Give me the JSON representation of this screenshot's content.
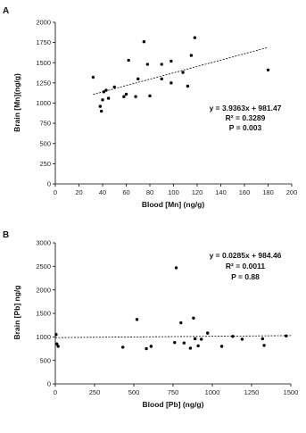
{
  "chart_data": [
    {
      "type": "scatter",
      "panel": "A",
      "xlabel": "Blood [Mn] (ng/g)",
      "ylabel": "Brain [Mn](ng/g)",
      "xlim": [
        0,
        200
      ],
      "ylim": [
        0,
        2000
      ],
      "xticks": [
        "0",
        "20",
        "40",
        "60",
        "80",
        "100",
        "120",
        "140",
        "160",
        "180",
        "200"
      ],
      "yticks": [
        "0",
        "250",
        "500",
        "750",
        "1000",
        "1250",
        "1500",
        "1750",
        "2000"
      ],
      "grid": false,
      "legend": "none",
      "points": [
        {
          "x": 32,
          "y": 1320
        },
        {
          "x": 38,
          "y": 960
        },
        {
          "x": 39,
          "y": 900
        },
        {
          "x": 40,
          "y": 1040
        },
        {
          "x": 41,
          "y": 1140
        },
        {
          "x": 43,
          "y": 1160
        },
        {
          "x": 45,
          "y": 1060
        },
        {
          "x": 50,
          "y": 1200
        },
        {
          "x": 58,
          "y": 1080
        },
        {
          "x": 60,
          "y": 1110
        },
        {
          "x": 62,
          "y": 1530
        },
        {
          "x": 68,
          "y": 1080
        },
        {
          "x": 70,
          "y": 1300
        },
        {
          "x": 75,
          "y": 1760
        },
        {
          "x": 78,
          "y": 1480
        },
        {
          "x": 80,
          "y": 1090
        },
        {
          "x": 90,
          "y": 1480
        },
        {
          "x": 90,
          "y": 1300
        },
        {
          "x": 98,
          "y": 1250
        },
        {
          "x": 98,
          "y": 1520
        },
        {
          "x": 108,
          "y": 1380
        },
        {
          "x": 112,
          "y": 1210
        },
        {
          "x": 115,
          "y": 1590
        },
        {
          "x": 118,
          "y": 1810
        },
        {
          "x": 180,
          "y": 1410
        }
      ],
      "trendline": {
        "slope": 3.9363,
        "intercept": 981.47,
        "x_range": [
          32,
          180
        ]
      },
      "annotations": [
        "y = 3.9363x + 981.47",
        "R² = 0.3289",
        "P = 0.003"
      ]
    },
    {
      "type": "scatter",
      "panel": "B",
      "xlabel": "Blood [Pb] (ng/g)",
      "ylabel": "Brain [Pb] ng/g",
      "xlim": [
        0,
        1500
      ],
      "ylim": [
        0,
        3000
      ],
      "xticks": [
        "0",
        "250",
        "500",
        "750",
        "1000",
        "1250",
        "1500"
      ],
      "yticks": [
        "0",
        "500",
        "1000",
        "1500",
        "2000",
        "2500",
        "3000"
      ],
      "grid": false,
      "legend": "none",
      "points": [
        {
          "x": 5,
          "y": 1050
        },
        {
          "x": 10,
          "y": 850
        },
        {
          "x": 18,
          "y": 800
        },
        {
          "x": 430,
          "y": 780
        },
        {
          "x": 520,
          "y": 1370
        },
        {
          "x": 580,
          "y": 750
        },
        {
          "x": 610,
          "y": 800
        },
        {
          "x": 760,
          "y": 880
        },
        {
          "x": 770,
          "y": 2470
        },
        {
          "x": 800,
          "y": 1300
        },
        {
          "x": 820,
          "y": 870
        },
        {
          "x": 860,
          "y": 760
        },
        {
          "x": 880,
          "y": 1400
        },
        {
          "x": 890,
          "y": 960
        },
        {
          "x": 910,
          "y": 810
        },
        {
          "x": 930,
          "y": 950
        },
        {
          "x": 970,
          "y": 1080
        },
        {
          "x": 1060,
          "y": 800
        },
        {
          "x": 1130,
          "y": 1010
        },
        {
          "x": 1190,
          "y": 950
        },
        {
          "x": 1320,
          "y": 960
        },
        {
          "x": 1330,
          "y": 820
        },
        {
          "x": 1470,
          "y": 1020
        }
      ],
      "trendline": {
        "slope": 0.0285,
        "intercept": 984.46,
        "x_range": [
          0,
          1500
        ]
      },
      "annotations": [
        "y = 0.0285x + 984.46",
        "R² = 0.0011",
        "P = 0.88"
      ]
    }
  ]
}
